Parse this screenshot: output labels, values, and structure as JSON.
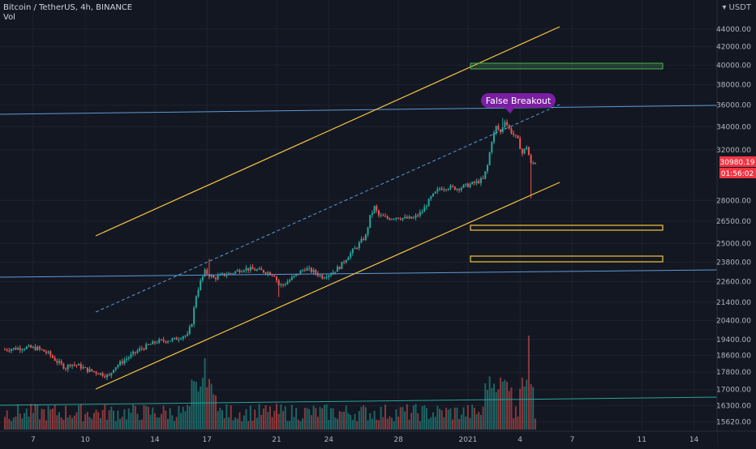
{
  "header": {
    "title": "Bitcoin / TetherUS, 4h, BINANCE",
    "volume_label": "Vol"
  },
  "currency": "USDT",
  "price_tag": {
    "value": "30980.19",
    "countdown": "01:56:02",
    "color": "#f23645"
  },
  "annotation": {
    "text": "False Breakout",
    "color": "#7b1fa2"
  },
  "colors": {
    "up": "#26a69a",
    "down": "#ef5350",
    "channel": "#f5c542",
    "level_zone": "#f5c542",
    "target_zone": "#4caf50",
    "horizontal": "#5b9bd5"
  },
  "chart_data": {
    "type": "candlestick",
    "title": "Bitcoin / TetherUS, 4h, BINANCE",
    "y_scale": "log",
    "ylim": [
      15300,
      47500
    ],
    "y_ticks": [
      "44000.00",
      "42000.00",
      "40000.00",
      "38000.00",
      "36000.00",
      "34000.00",
      "32000.00",
      "28000.00",
      "26500.00",
      "25000.00",
      "23800.00",
      "22600.00",
      "21400.00",
      "20400.00",
      "19400.00",
      "18600.00",
      "17800.00",
      "17000.00",
      "16300.00",
      "15620.00"
    ],
    "x_ticks": [
      "7",
      "10",
      "14",
      "17",
      "21",
      "24",
      "28",
      "2021",
      "4",
      "7",
      "11",
      "14"
    ],
    "x_tick_positions_bars": [
      13,
      37,
      69,
      93,
      125,
      149,
      181,
      213,
      237,
      261,
      293,
      317
    ],
    "total_bars": 346,
    "close_path": [
      [
        0,
        18900
      ],
      [
        10,
        19000
      ],
      [
        15,
        18950
      ],
      [
        20,
        18700
      ],
      [
        24,
        18300
      ],
      [
        28,
        18000
      ],
      [
        30,
        18200
      ],
      [
        34,
        18100
      ],
      [
        38,
        17900
      ],
      [
        42,
        17800
      ],
      [
        45,
        17700
      ],
      [
        48,
        17600
      ],
      [
        50,
        18000
      ],
      [
        54,
        18300
      ],
      [
        58,
        18600
      ],
      [
        62,
        18900
      ],
      [
        66,
        19100
      ],
      [
        70,
        19300
      ],
      [
        74,
        19350
      ],
      [
        78,
        19400
      ],
      [
        82,
        19600
      ],
      [
        84,
        19600
      ],
      [
        86,
        20300
      ],
      [
        88,
        21800
      ],
      [
        90,
        22600
      ],
      [
        92,
        23200
      ],
      [
        94,
        23000
      ],
      [
        96,
        22800
      ],
      [
        100,
        23000
      ],
      [
        104,
        23100
      ],
      [
        110,
        23400
      ],
      [
        116,
        23300
      ],
      [
        120,
        23200
      ],
      [
        124,
        23000
      ],
      [
        126,
        22400
      ],
      [
        128,
        22400
      ],
      [
        134,
        23000
      ],
      [
        138,
        23400
      ],
      [
        142,
        23200
      ],
      [
        146,
        22900
      ],
      [
        150,
        23100
      ],
      [
        154,
        23500
      ],
      [
        158,
        24200
      ],
      [
        162,
        24800
      ],
      [
        166,
        25500
      ],
      [
        168,
        26800
      ],
      [
        170,
        27500
      ],
      [
        172,
        26900
      ],
      [
        176,
        26700
      ],
      [
        180,
        26800
      ],
      [
        184,
        26700
      ],
      [
        188,
        26700
      ],
      [
        192,
        27200
      ],
      [
        196,
        28200
      ],
      [
        200,
        28900
      ],
      [
        204,
        29000
      ],
      [
        208,
        28900
      ],
      [
        212,
        29100
      ],
      [
        216,
        29300
      ],
      [
        220,
        29600
      ],
      [
        222,
        30700
      ],
      [
        224,
        32800
      ],
      [
        226,
        34000
      ],
      [
        228,
        33500
      ],
      [
        230,
        34600
      ],
      [
        232,
        33800
      ],
      [
        234,
        33300
      ],
      [
        236,
        32800
      ],
      [
        238,
        31700
      ],
      [
        240,
        32300
      ],
      [
        242,
        30800
      ],
      [
        244,
        30980
      ]
    ],
    "close_values": [],
    "volume_values": [],
    "annotations": [
      {
        "text": "False Breakout",
        "bar": 228,
        "price": 36700
      }
    ]
  }
}
